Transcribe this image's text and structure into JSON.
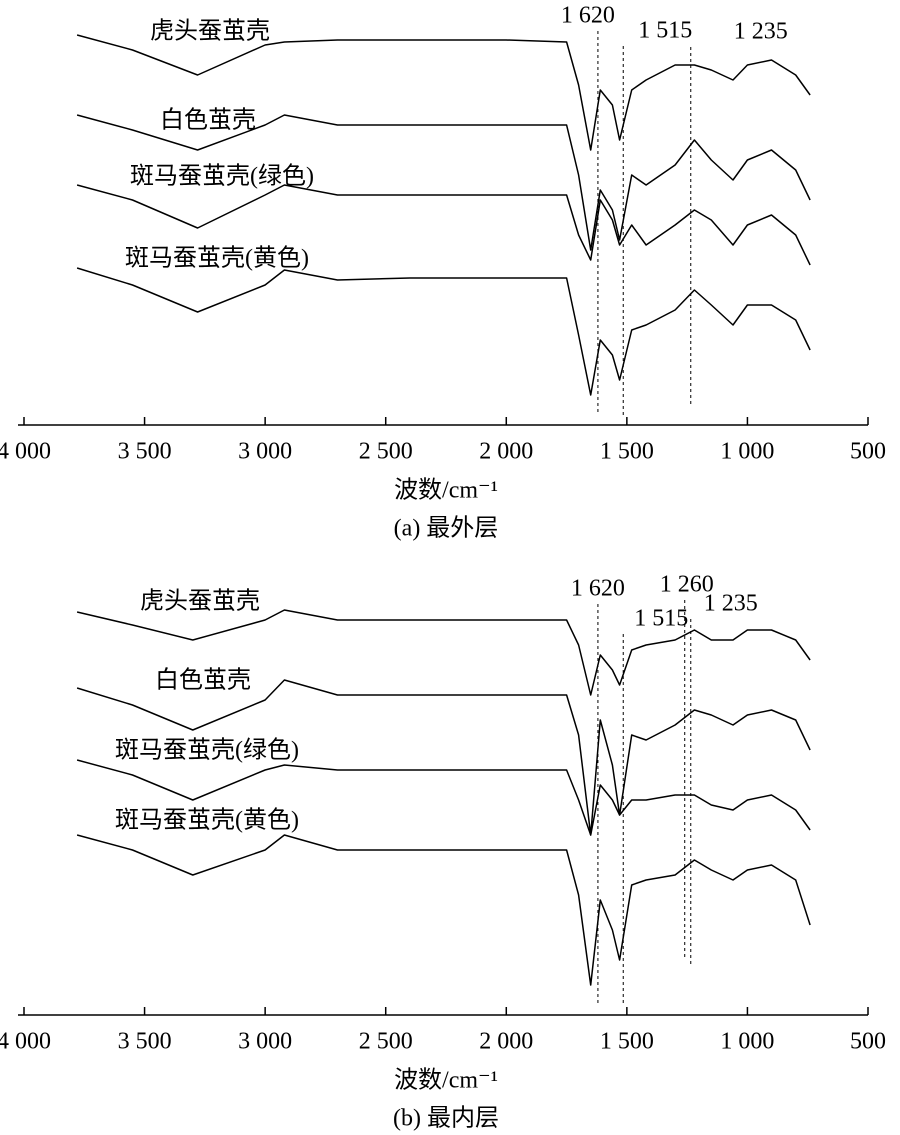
{
  "chart_data": [
    {
      "type": "line",
      "caption": "(a) 最外层",
      "xlabel": "波数/cm⁻¹",
      "x": [
        3780,
        3550,
        3280,
        3000,
        2920,
        2700,
        2400,
        2000,
        1750,
        1700,
        1650,
        1610,
        1560,
        1530,
        1480,
        1420,
        1300,
        1220,
        1150,
        1060,
        1000,
        900,
        800,
        740
      ],
      "series": [
        {
          "name": "虎头蚕茧壳",
          "color": "#000000",
          "values": [
            390,
            375,
            350,
            380,
            383,
            385,
            385,
            385,
            383,
            340,
            275,
            335,
            320,
            285,
            335,
            345,
            360,
            360,
            355,
            345,
            360,
            365,
            350,
            330
          ]
        },
        {
          "name": "白色茧壳",
          "color": "#000000",
          "values": [
            310,
            295,
            275,
            300,
            310,
            300,
            300,
            300,
            300,
            250,
            175,
            235,
            215,
            185,
            250,
            240,
            260,
            285,
            265,
            245,
            265,
            275,
            255,
            225
          ]
        },
        {
          "name": "斑马蚕茧壳(绿色)",
          "color": "#000000",
          "values": [
            240,
            225,
            197,
            230,
            240,
            230,
            230,
            230,
            230,
            190,
            165,
            225,
            205,
            180,
            200,
            180,
            200,
            215,
            205,
            180,
            200,
            210,
            190,
            160
          ]
        },
        {
          "name": "斑马蚕茧壳(黄色)",
          "color": "#000000",
          "values": [
            157,
            140,
            113,
            140,
            155,
            145,
            147,
            147,
            147,
            90,
            30,
            85,
            70,
            45,
            95,
            100,
            115,
            135,
            120,
            100,
            120,
            120,
            105,
            75
          ]
        }
      ],
      "xlim": [
        4000,
        500
      ],
      "ylim": [
        0,
        420
      ],
      "xticks": [
        {
          "value": 4000,
          "label": "4 000"
        },
        {
          "value": 3500,
          "label": "3 500"
        },
        {
          "value": 3000,
          "label": "3 000"
        },
        {
          "value": 2500,
          "label": "2 500"
        },
        {
          "value": 2000,
          "label": "2 000"
        },
        {
          "value": 1500,
          "label": "1 500"
        },
        {
          "value": 1000,
          "label": "1 000"
        },
        500
      ],
      "annotations": [
        {
          "value": 1620,
          "label": "1 620"
        },
        {
          "value": 1515,
          "label": "1 515"
        },
        {
          "value": 1235,
          "label": "1 235"
        }
      ]
    },
    {
      "type": "line",
      "caption": "(b) 最内层",
      "xlabel": "波数/cm⁻¹",
      "x": [
        3780,
        3550,
        3300,
        3000,
        2920,
        2700,
        2400,
        2000,
        1750,
        1700,
        1650,
        1610,
        1560,
        1530,
        1480,
        1420,
        1300,
        1220,
        1150,
        1060,
        1000,
        900,
        800,
        740
      ],
      "series": [
        {
          "name": "虎头蚕茧壳",
          "color": "#000000",
          "values": [
            403,
            390,
            375,
            395,
            405,
            395,
            395,
            395,
            395,
            370,
            320,
            360,
            345,
            330,
            365,
            370,
            375,
            385,
            375,
            375,
            385,
            385,
            375,
            355
          ]
        },
        {
          "name": "白色茧壳",
          "color": "#000000",
          "values": [
            327,
            310,
            285,
            315,
            335,
            320,
            320,
            320,
            320,
            280,
            180,
            295,
            250,
            200,
            280,
            275,
            290,
            305,
            300,
            290,
            300,
            305,
            295,
            265
          ]
        },
        {
          "name": "斑马蚕茧壳(绿色)",
          "color": "#000000",
          "values": [
            255,
            240,
            215,
            245,
            250,
            245,
            245,
            245,
            245,
            215,
            180,
            230,
            215,
            200,
            215,
            215,
            220,
            220,
            210,
            205,
            215,
            220,
            205,
            185
          ]
        },
        {
          "name": "斑马蚕茧壳(黄色)",
          "color": "#000000",
          "values": [
            180,
            165,
            140,
            165,
            180,
            165,
            165,
            165,
            165,
            120,
            30,
            115,
            85,
            55,
            130,
            135,
            140,
            155,
            145,
            135,
            145,
            150,
            135,
            90
          ]
        }
      ],
      "xlim": [
        4000,
        500
      ],
      "ylim": [
        0,
        420
      ],
      "xticks": [
        {
          "value": 4000,
          "label": "4 000"
        },
        {
          "value": 3500,
          "label": "3 500"
        },
        {
          "value": 3000,
          "label": "3 000"
        },
        {
          "value": 2500,
          "label": "2 500"
        },
        {
          "value": 2000,
          "label": "2 000"
        },
        {
          "value": 1500,
          "label": "1 500"
        },
        {
          "value": 1000,
          "label": "1 000"
        },
        500
      ],
      "annotations": [
        {
          "value": 1620,
          "label": "1 620"
        },
        {
          "value": 1515,
          "label": "1 515"
        },
        {
          "value": 1260,
          "label": "1 260"
        },
        {
          "value": 1235,
          "label": "1 235"
        }
      ]
    }
  ]
}
